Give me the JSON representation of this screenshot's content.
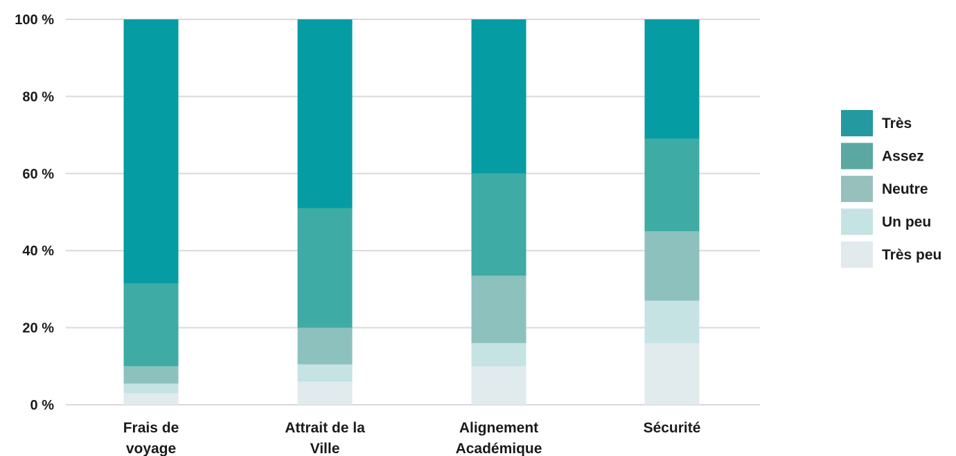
{
  "chart_data": {
    "type": "bar",
    "stacked": true,
    "percent": true,
    "title": "",
    "xlabel": "",
    "ylabel": "",
    "ylim": [
      0,
      100
    ],
    "yticks": [
      0,
      20,
      40,
      60,
      80,
      100
    ],
    "ytick_labels": [
      "0 %",
      "20 %",
      "40 %",
      "60 %",
      "80 %",
      "100 %"
    ],
    "grid": true,
    "legend_position": "right",
    "categories": [
      [
        "Frais de",
        "voyage"
      ],
      [
        "Attrait de la",
        "Ville"
      ],
      [
        "Alignement",
        "Académique"
      ],
      [
        "Sécurité"
      ]
    ],
    "series": [
      {
        "name": "Très peu",
        "color": "#E1EAEC",
        "values": [
          3,
          6,
          10,
          16
        ]
      },
      {
        "name": "Un peu",
        "color": "#C5E3E3",
        "values": [
          2.5,
          4.5,
          6,
          11
        ]
      },
      {
        "name": "Neutre",
        "color": "#8DC1BD",
        "values": [
          4.5,
          9.5,
          17.5,
          18
        ]
      },
      {
        "name": "Assez",
        "color": "#3EABA4",
        "values": [
          21.5,
          31,
          26.5,
          24
        ]
      },
      {
        "name": "Très",
        "color": "#069CA4",
        "values": [
          68.5,
          49,
          40,
          31
        ]
      }
    ],
    "legend_order": [
      "Très",
      "Assez",
      "Neutre",
      "Un peu",
      "Très peu"
    ],
    "legend_colors": [
      "#2499A0",
      "#5BA8A2",
      "#97C0BD",
      "#C5E3E3",
      "#E1EAEC"
    ],
    "gridline_color": "#d9d9d9"
  }
}
